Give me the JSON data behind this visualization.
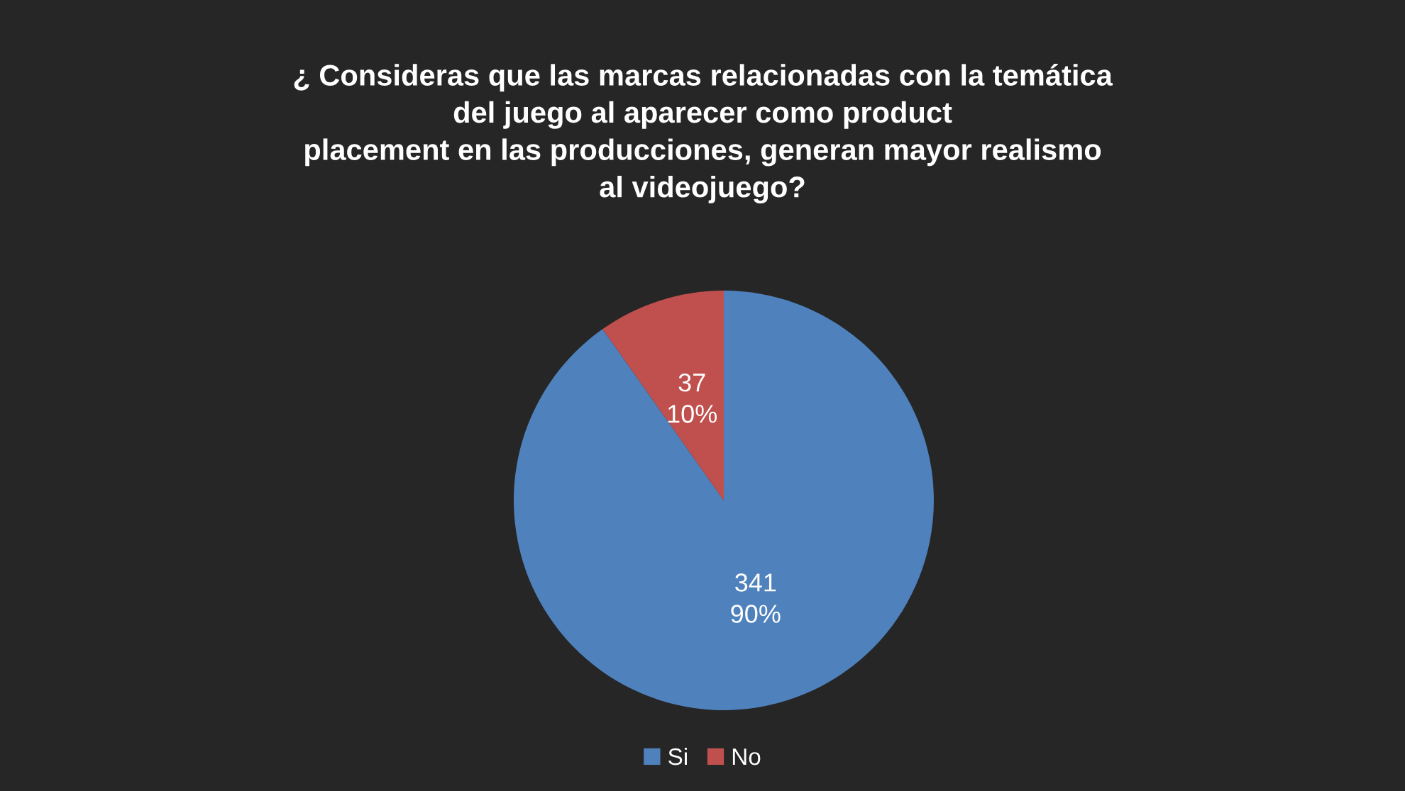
{
  "chart_data": {
    "type": "pie",
    "title": "¿ Consideras que las marcas relacionadas con la temática\ndel juego al aparecer como product\nplacement en las producciones, generan mayor realismo\nal videojuego?",
    "categories": [
      "Si",
      "No"
    ],
    "values": [
      341,
      37
    ],
    "colors": [
      "#4f81bd",
      "#c0504d"
    ],
    "value_labels": [
      "341\n90%",
      "37\n10%"
    ],
    "legend": "bottom"
  }
}
